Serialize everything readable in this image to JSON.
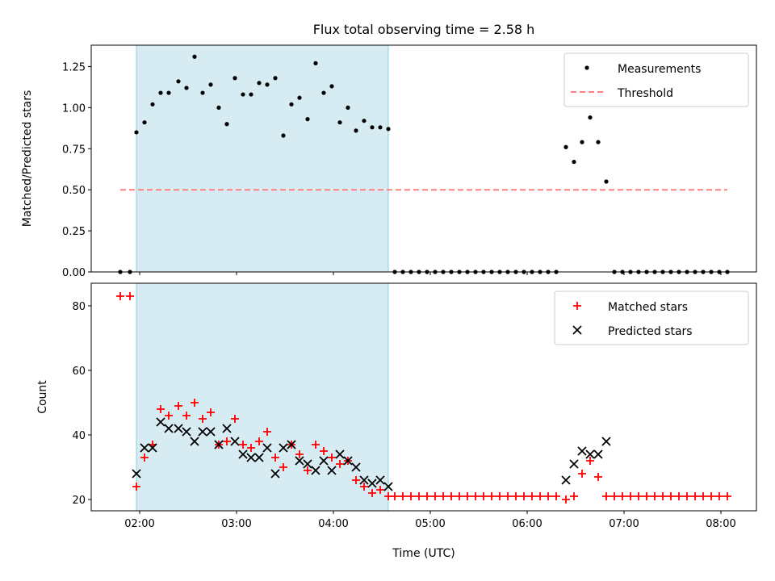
{
  "chart_data": [
    {
      "type": "scatter",
      "title": "Flux total observing time = 2.58 h",
      "xlabel": "",
      "ylabel": "Matched/Predicted stars",
      "xlim": [
        "01:30",
        "08:22"
      ],
      "ylim": [
        0,
        1.38
      ],
      "yticks": [
        "0.00",
        "0.25",
        "0.50",
        "0.75",
        "1.00",
        "1.25"
      ],
      "shaded_span": [
        "01:58",
        "04:34"
      ],
      "legend_position": "top-right",
      "series": [
        {
          "name": "Measurements",
          "marker": "dot",
          "color": "#000000",
          "points": [
            [
              "01:48",
              0
            ],
            [
              "01:54",
              0
            ],
            [
              "01:58",
              0.85
            ],
            [
              "02:03",
              0.91
            ],
            [
              "02:08",
              1.02
            ],
            [
              "02:13",
              1.09
            ],
            [
              "02:18",
              1.09
            ],
            [
              "02:24",
              1.16
            ],
            [
              "02:29",
              1.12
            ],
            [
              "02:34",
              1.31
            ],
            [
              "02:39",
              1.09
            ],
            [
              "02:44",
              1.14
            ],
            [
              "02:49",
              1.0
            ],
            [
              "02:54",
              0.9
            ],
            [
              "02:59",
              1.18
            ],
            [
              "03:04",
              1.08
            ],
            [
              "03:09",
              1.08
            ],
            [
              "03:14",
              1.15
            ],
            [
              "03:19",
              1.14
            ],
            [
              "03:24",
              1.18
            ],
            [
              "03:29",
              0.83
            ],
            [
              "03:34",
              1.02
            ],
            [
              "03:39",
              1.06
            ],
            [
              "03:44",
              0.93
            ],
            [
              "03:49",
              1.27
            ],
            [
              "03:54",
              1.09
            ],
            [
              "03:59",
              1.13
            ],
            [
              "04:04",
              0.91
            ],
            [
              "04:09",
              1.0
            ],
            [
              "04:14",
              0.86
            ],
            [
              "04:19",
              0.92
            ],
            [
              "04:24",
              0.88
            ],
            [
              "04:29",
              0.88
            ],
            [
              "04:34",
              0.87
            ],
            [
              "04:38",
              0
            ],
            [
              "04:43",
              0
            ],
            [
              "04:48",
              0
            ],
            [
              "04:53",
              0
            ],
            [
              "04:58",
              0
            ],
            [
              "05:03",
              0
            ],
            [
              "05:08",
              0
            ],
            [
              "05:13",
              0
            ],
            [
              "05:18",
              0
            ],
            [
              "05:23",
              0
            ],
            [
              "05:28",
              0
            ],
            [
              "05:33",
              0
            ],
            [
              "05:38",
              0
            ],
            [
              "05:43",
              0
            ],
            [
              "05:48",
              0
            ],
            [
              "05:53",
              0
            ],
            [
              "05:58",
              0
            ],
            [
              "06:03",
              0
            ],
            [
              "06:08",
              0
            ],
            [
              "06:13",
              0
            ],
            [
              "06:18",
              0
            ],
            [
              "06:24",
              0.76
            ],
            [
              "06:29",
              0.67
            ],
            [
              "06:34",
              0.79
            ],
            [
              "06:39",
              0.94
            ],
            [
              "06:44",
              0.79
            ],
            [
              "06:49",
              0.55
            ],
            [
              "06:54",
              0
            ],
            [
              "06:59",
              0
            ],
            [
              "07:04",
              0
            ],
            [
              "07:09",
              0
            ],
            [
              "07:14",
              0
            ],
            [
              "07:19",
              0
            ],
            [
              "07:24",
              0
            ],
            [
              "07:29",
              0
            ],
            [
              "07:34",
              0
            ],
            [
              "07:39",
              0
            ],
            [
              "07:44",
              0
            ],
            [
              "07:49",
              0
            ],
            [
              "07:54",
              0
            ],
            [
              "07:59",
              0
            ],
            [
              "08:04",
              0
            ]
          ]
        },
        {
          "name": "Threshold",
          "style": "dashed-line",
          "color": "#ff7f7f",
          "points": [
            [
              "01:48",
              0.5
            ],
            [
              "08:04",
              0.5
            ]
          ]
        }
      ]
    },
    {
      "type": "scatter",
      "title": "",
      "xlabel": "Time (UTC)",
      "ylabel": "Count",
      "xlim": [
        "01:30",
        "08:22"
      ],
      "ylim": [
        16.5,
        87
      ],
      "yticks": [
        "20",
        "40",
        "60",
        "80"
      ],
      "xticks": [
        "02:00",
        "03:00",
        "04:00",
        "05:00",
        "06:00",
        "07:00",
        "08:00"
      ],
      "shaded_span": [
        "01:58",
        "04:34"
      ],
      "legend_position": "top-right",
      "series": [
        {
          "name": "Matched stars",
          "marker": "plus",
          "color": "#ff0000",
          "points": [
            [
              "01:48",
              83
            ],
            [
              "01:54",
              83
            ],
            [
              "01:58",
              24
            ],
            [
              "02:03",
              33
            ],
            [
              "02:08",
              37
            ],
            [
              "02:13",
              48
            ],
            [
              "02:18",
              46
            ],
            [
              "02:24",
              49
            ],
            [
              "02:29",
              46
            ],
            [
              "02:34",
              50
            ],
            [
              "02:39",
              45
            ],
            [
              "02:44",
              47
            ],
            [
              "02:49",
              37
            ],
            [
              "02:54",
              38
            ],
            [
              "02:59",
              45
            ],
            [
              "03:04",
              37
            ],
            [
              "03:09",
              36
            ],
            [
              "03:14",
              38
            ],
            [
              "03:19",
              41
            ],
            [
              "03:24",
              33
            ],
            [
              "03:29",
              30
            ],
            [
              "03:34",
              37
            ],
            [
              "03:39",
              34
            ],
            [
              "03:44",
              29
            ],
            [
              "03:49",
              37
            ],
            [
              "03:54",
              35
            ],
            [
              "03:59",
              33
            ],
            [
              "04:04",
              31
            ],
            [
              "04:09",
              32
            ],
            [
              "04:14",
              26
            ],
            [
              "04:19",
              24
            ],
            [
              "04:24",
              22
            ],
            [
              "04:29",
              23
            ],
            [
              "04:34",
              21
            ],
            [
              "04:38",
              21
            ],
            [
              "04:43",
              21
            ],
            [
              "04:48",
              21
            ],
            [
              "04:53",
              21
            ],
            [
              "04:58",
              21
            ],
            [
              "05:03",
              21
            ],
            [
              "05:08",
              21
            ],
            [
              "05:13",
              21
            ],
            [
              "05:18",
              21
            ],
            [
              "05:23",
              21
            ],
            [
              "05:28",
              21
            ],
            [
              "05:33",
              21
            ],
            [
              "05:38",
              21
            ],
            [
              "05:43",
              21
            ],
            [
              "05:48",
              21
            ],
            [
              "05:53",
              21
            ],
            [
              "05:58",
              21
            ],
            [
              "06:03",
              21
            ],
            [
              "06:08",
              21
            ],
            [
              "06:13",
              21
            ],
            [
              "06:18",
              21
            ],
            [
              "06:24",
              20
            ],
            [
              "06:29",
              21
            ],
            [
              "06:34",
              28
            ],
            [
              "06:39",
              32
            ],
            [
              "06:44",
              27
            ],
            [
              "06:49",
              21
            ],
            [
              "06:54",
              21
            ],
            [
              "06:59",
              21
            ],
            [
              "07:04",
              21
            ],
            [
              "07:09",
              21
            ],
            [
              "07:14",
              21
            ],
            [
              "07:19",
              21
            ],
            [
              "07:24",
              21
            ],
            [
              "07:29",
              21
            ],
            [
              "07:34",
              21
            ],
            [
              "07:39",
              21
            ],
            [
              "07:44",
              21
            ],
            [
              "07:49",
              21
            ],
            [
              "07:54",
              21
            ],
            [
              "07:59",
              21
            ],
            [
              "08:04",
              21
            ]
          ]
        },
        {
          "name": "Predicted stars",
          "marker": "x",
          "color": "#000000",
          "points": [
            [
              "01:58",
              28
            ],
            [
              "02:03",
              36
            ],
            [
              "02:08",
              36
            ],
            [
              "02:13",
              44
            ],
            [
              "02:18",
              42
            ],
            [
              "02:24",
              42
            ],
            [
              "02:29",
              41
            ],
            [
              "02:34",
              38
            ],
            [
              "02:39",
              41
            ],
            [
              "02:44",
              41
            ],
            [
              "02:49",
              37
            ],
            [
              "02:54",
              42
            ],
            [
              "02:59",
              38
            ],
            [
              "03:04",
              34
            ],
            [
              "03:09",
              33
            ],
            [
              "03:14",
              33
            ],
            [
              "03:19",
              36
            ],
            [
              "03:24",
              28
            ],
            [
              "03:29",
              36
            ],
            [
              "03:34",
              37
            ],
            [
              "03:39",
              32
            ],
            [
              "03:44",
              31
            ],
            [
              "03:49",
              29
            ],
            [
              "03:54",
              32
            ],
            [
              "03:59",
              29
            ],
            [
              "04:04",
              34
            ],
            [
              "04:09",
              32
            ],
            [
              "04:14",
              30
            ],
            [
              "04:19",
              26
            ],
            [
              "04:24",
              25
            ],
            [
              "04:29",
              26
            ],
            [
              "04:34",
              24
            ],
            [
              "06:24",
              26
            ],
            [
              "06:29",
              31
            ],
            [
              "06:34",
              35
            ],
            [
              "06:39",
              34
            ],
            [
              "06:44",
              34
            ],
            [
              "06:49",
              38
            ]
          ]
        }
      ]
    }
  ]
}
